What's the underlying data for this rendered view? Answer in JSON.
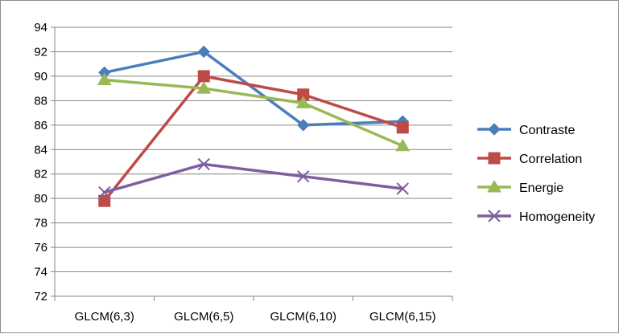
{
  "chart_data": {
    "type": "line",
    "title": "",
    "xlabel": "",
    "ylabel": "",
    "categories": [
      "GLCM(6,3)",
      "GLCM(6,5)",
      "GLCM(6,10)",
      "GLCM(6,15)"
    ],
    "ylim": [
      72,
      94
    ],
    "ytick_step": 2,
    "grid": true,
    "legend_position": "right",
    "series": [
      {
        "name": "Contraste",
        "values": [
          90.3,
          92.0,
          86.0,
          86.3
        ],
        "color": "#4a7ebb",
        "marker": "diamond"
      },
      {
        "name": "Correlation",
        "values": [
          79.8,
          90.0,
          88.5,
          85.8
        ],
        "color": "#be4b48",
        "marker": "square"
      },
      {
        "name": "Energie",
        "values": [
          89.7,
          89.0,
          87.8,
          84.3
        ],
        "color": "#98b954",
        "marker": "triangle"
      },
      {
        "name": "Homogeneity",
        "values": [
          80.5,
          82.8,
          81.8,
          80.8
        ],
        "color": "#7d5fa0",
        "marker": "x"
      }
    ]
  }
}
